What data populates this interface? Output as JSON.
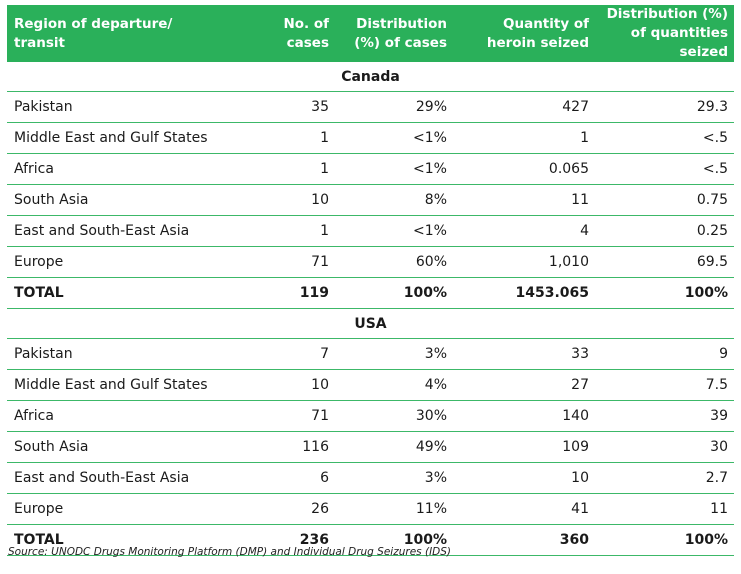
{
  "headers": [
    "Region of departure/ transit",
    "No. of cases",
    "Distribution (%) of cases",
    "Quantity of heroin seized",
    "Distribution (%) of quantities seized"
  ],
  "sections": [
    {
      "name": "Canada",
      "rows": [
        [
          "Pakistan",
          "35",
          "29%",
          "427",
          "29.3"
        ],
        [
          "Middle East and Gulf States",
          "1",
          "<1%",
          "1",
          "<.5"
        ],
        [
          "Africa",
          "1",
          "<1%",
          "0.065",
          "<.5"
        ],
        [
          "South Asia",
          "10",
          "8%",
          "11",
          "0.75"
        ],
        [
          "East and South-East Asia",
          "1",
          "<1%",
          "4",
          "0.25"
        ],
        [
          "Europe",
          "71",
          "60%",
          "1,010",
          "69.5"
        ]
      ],
      "total": [
        "TOTAL",
        "119",
        "100%",
        "1453.065",
        "100%"
      ]
    },
    {
      "name": "USA",
      "rows": [
        [
          "Pakistan",
          "7",
          "3%",
          "33",
          "9"
        ],
        [
          "Middle East and Gulf States",
          "10",
          "4%",
          "27",
          "7.5"
        ],
        [
          "Africa",
          "71",
          "30%",
          "140",
          "39"
        ],
        [
          "South Asia",
          "116",
          "49%",
          "109",
          "30"
        ],
        [
          "East and South-East Asia",
          "6",
          "3%",
          "10",
          "2.7"
        ],
        [
          "Europe",
          "26",
          "11%",
          "41",
          "11"
        ]
      ],
      "total": [
        "TOTAL",
        "236",
        "100%",
        "360",
        "100%"
      ]
    }
  ],
  "source": "Source: UNODC Drugs Monitoring Platform (DMP) and Individual Drug Seizures (IDS)",
  "colors": {
    "header_bg": "#2ab05a",
    "rule": "#3cb868"
  }
}
